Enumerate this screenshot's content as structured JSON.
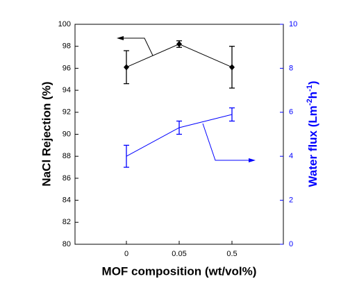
{
  "chart_data": {
    "type": "line",
    "categories": [
      "0",
      "0.05",
      "0.5"
    ],
    "xlabel": "MOF composition (wt/vol%)",
    "ylabel": "NaCl Rejection (%)",
    "y2label_parts": [
      "Water flux (Lm",
      "-2",
      "h",
      "-1",
      ")"
    ],
    "ylim": [
      80,
      100
    ],
    "yticks": [
      80,
      82,
      84,
      86,
      88,
      90,
      92,
      94,
      96,
      98,
      100
    ],
    "y2lim": [
      0,
      10
    ],
    "y2ticks": [
      0,
      2,
      4,
      6,
      8,
      10
    ],
    "y2color": "#0000ff",
    "series": [
      {
        "color": "#000000",
        "marker": "diamond",
        "values": [
          96.1,
          98.2,
          96.1
        ],
        "errors": [
          1.5,
          0.3,
          1.9
        ]
      },
      {
        "color": "#0000ff",
        "axis": "y2",
        "marker": "none",
        "values": [
          4.0,
          5.3,
          5.9
        ],
        "errors": [
          0.5,
          0.3,
          0.3
        ]
      }
    ]
  }
}
